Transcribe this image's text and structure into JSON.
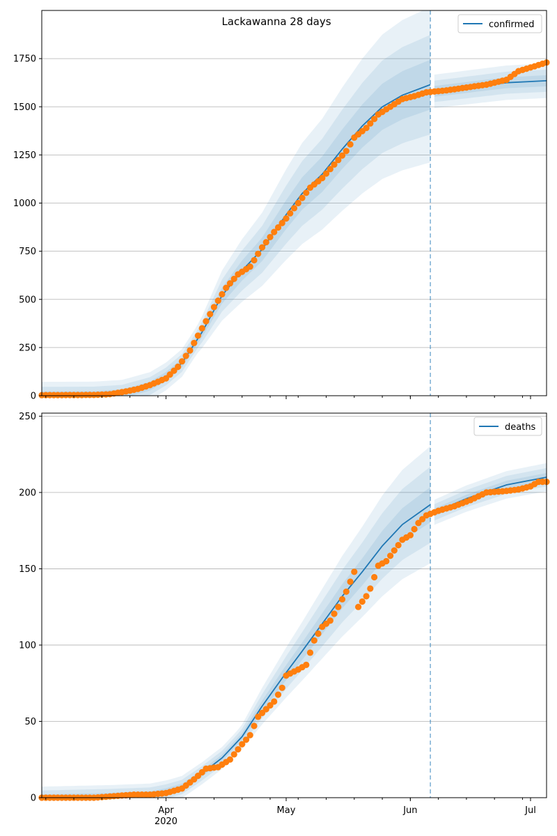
{
  "chart_data": [
    {
      "type": "line",
      "title": "Lackawanna 28 days",
      "xlabel": "",
      "ylabel": "",
      "xlim": [
        "2020-03-01",
        "2020-07-05"
      ],
      "ylim": [
        0,
        2000
      ],
      "yticks": [
        0,
        250,
        500,
        750,
        1000,
        1250,
        1500,
        1750
      ],
      "xticks": [
        {
          "date": "2020-04-01",
          "label": "Apr",
          "sublabel": "2020"
        },
        {
          "date": "2020-05-01",
          "label": "May",
          "sublabel": ""
        },
        {
          "date": "2020-06-01",
          "label": "Jun",
          "sublabel": ""
        },
        {
          "date": "2020-07-01",
          "label": "Jul",
          "sublabel": ""
        }
      ],
      "grid": "horizontal",
      "legend": {
        "position": "top-right",
        "entries": [
          "confirmed"
        ]
      },
      "forecast_start": "2020-06-06",
      "colors": {
        "model": "#1f77b4",
        "observed": "#ff7f0e",
        "band": "#1f77b4"
      },
      "series": [
        {
          "name": "confirmed",
          "kind": "model-line",
          "points": [
            [
              "2020-03-01",
              0
            ],
            [
              "2020-03-14",
              1
            ],
            [
              "2020-03-21",
              10
            ],
            [
              "2020-03-28",
              50
            ],
            [
              "2020-04-01",
              100
            ],
            [
              "2020-04-05",
              170
            ],
            [
              "2020-04-10",
              330
            ],
            [
              "2020-04-15",
              520
            ],
            [
              "2020-04-20",
              650
            ],
            [
              "2020-04-25",
              760
            ],
            [
              "2020-05-01",
              940
            ],
            [
              "2020-05-05",
              1050
            ],
            [
              "2020-05-10",
              1150
            ],
            [
              "2020-05-15",
              1280
            ],
            [
              "2020-05-20",
              1400
            ],
            [
              "2020-05-25",
              1500
            ],
            [
              "2020-05-30",
              1560
            ],
            [
              "2020-06-06",
              1615
            ],
            [
              "2020-06-07",
              1580
            ],
            [
              "2020-06-15",
              1600
            ],
            [
              "2020-06-25",
              1625
            ],
            [
              "2020-07-05",
              1635
            ]
          ]
        },
        {
          "kind": "observed-points",
          "points": [
            [
              "2020-03-01",
              3
            ],
            [
              "2020-03-14",
              4
            ],
            [
              "2020-03-18",
              8
            ],
            [
              "2020-03-22",
              22
            ],
            [
              "2020-03-25",
              35
            ],
            [
              "2020-03-28",
              55
            ],
            [
              "2020-04-01",
              90
            ],
            [
              "2020-04-04",
              150
            ],
            [
              "2020-04-07",
              235
            ],
            [
              "2020-04-10",
              350
            ],
            [
              "2020-04-13",
              460
            ],
            [
              "2020-04-16",
              560
            ],
            [
              "2020-04-19",
              630
            ],
            [
              "2020-04-22",
              670
            ],
            [
              "2020-04-25",
              770
            ],
            [
              "2020-04-28",
              850
            ],
            [
              "2020-05-01",
              920
            ],
            [
              "2020-05-04",
              1000
            ],
            [
              "2020-05-07",
              1080
            ],
            [
              "2020-05-10",
              1130
            ],
            [
              "2020-05-13",
              1200
            ],
            [
              "2020-05-16",
              1270
            ],
            [
              "2020-05-18",
              1340
            ],
            [
              "2020-05-21",
              1390
            ],
            [
              "2020-05-24",
              1460
            ],
            [
              "2020-05-27",
              1500
            ],
            [
              "2020-05-30",
              1540
            ],
            [
              "2020-06-02",
              1555
            ],
            [
              "2020-06-05",
              1575
            ],
            [
              "2020-06-10",
              1585
            ],
            [
              "2020-06-15",
              1600
            ],
            [
              "2020-06-20",
              1615
            ],
            [
              "2020-06-25",
              1640
            ],
            [
              "2020-06-28",
              1685
            ],
            [
              "2020-07-02",
              1710
            ],
            [
              "2020-07-05",
              1730
            ]
          ]
        }
      ],
      "band_half_widths_fraction": [
        0.08,
        0.16,
        0.25
      ]
    },
    {
      "type": "line",
      "title": "",
      "xlabel": "",
      "ylabel": "",
      "xlim": [
        "2020-03-01",
        "2020-07-05"
      ],
      "ylim": [
        0,
        252
      ],
      "yticks": [
        0,
        50,
        100,
        150,
        200,
        250
      ],
      "xticks": [
        {
          "date": "2020-04-01",
          "label": "Apr",
          "sublabel": "2020"
        },
        {
          "date": "2020-05-01",
          "label": "May",
          "sublabel": ""
        },
        {
          "date": "2020-06-01",
          "label": "Jun",
          "sublabel": ""
        },
        {
          "date": "2020-07-01",
          "label": "Jul",
          "sublabel": ""
        }
      ],
      "grid": "horizontal",
      "legend": {
        "position": "top-right",
        "entries": [
          "deaths"
        ]
      },
      "forecast_start": "2020-06-06",
      "colors": {
        "model": "#1f77b4",
        "observed": "#ff7f0e",
        "band": "#1f77b4"
      },
      "series": [
        {
          "name": "deaths",
          "kind": "model-line",
          "points": [
            [
              "2020-03-01",
              0
            ],
            [
              "2020-03-18",
              1
            ],
            [
              "2020-03-28",
              2
            ],
            [
              "2020-04-01",
              4
            ],
            [
              "2020-04-05",
              7
            ],
            [
              "2020-04-10",
              16
            ],
            [
              "2020-04-15",
              26
            ],
            [
              "2020-04-20",
              40
            ],
            [
              "2020-04-25",
              60
            ],
            [
              "2020-05-01",
              82
            ],
            [
              "2020-05-05",
              96
            ],
            [
              "2020-05-10",
              114
            ],
            [
              "2020-05-15",
              132
            ],
            [
              "2020-05-20",
              148
            ],
            [
              "2020-05-25",
              165
            ],
            [
              "2020-05-30",
              179
            ],
            [
              "2020-06-06",
              192
            ],
            [
              "2020-06-07",
              187
            ],
            [
              "2020-06-15",
              196
            ],
            [
              "2020-06-25",
              205
            ],
            [
              "2020-07-05",
              210
            ]
          ]
        },
        {
          "kind": "observed-points",
          "points": [
            [
              "2020-03-01",
              0
            ],
            [
              "2020-03-14",
              0
            ],
            [
              "2020-03-24",
              2
            ],
            [
              "2020-03-28",
              2
            ],
            [
              "2020-04-01",
              3
            ],
            [
              "2020-04-05",
              6
            ],
            [
              "2020-04-08",
              12
            ],
            [
              "2020-04-11",
              19
            ],
            [
              "2020-04-14",
              20
            ],
            [
              "2020-04-17",
              25
            ],
            [
              "2020-04-20",
              35
            ],
            [
              "2020-04-22",
              41
            ],
            [
              "2020-04-24",
              53
            ],
            [
              "2020-04-26",
              58
            ],
            [
              "2020-04-28",
              63
            ],
            [
              "2020-04-30",
              72
            ],
            [
              "2020-05-01",
              80
            ],
            [
              "2020-05-04",
              84
            ],
            [
              "2020-05-06",
              87
            ],
            [
              "2020-05-08",
              103
            ],
            [
              "2020-05-10",
              112
            ],
            [
              "2020-05-12",
              116
            ],
            [
              "2020-05-14",
              125
            ],
            [
              "2020-05-16",
              135
            ],
            [
              "2020-05-18",
              148
            ],
            [
              "2020-05-19",
              125
            ],
            [
              "2020-05-21",
              132
            ],
            [
              "2020-05-22",
              137
            ],
            [
              "2020-05-24",
              152
            ],
            [
              "2020-05-26",
              155
            ],
            [
              "2020-05-28",
              162
            ],
            [
              "2020-05-30",
              169
            ],
            [
              "2020-06-01",
              172
            ],
            [
              "2020-06-03",
              180
            ],
            [
              "2020-06-05",
              185
            ],
            [
              "2020-06-08",
              188
            ],
            [
              "2020-06-12",
              191
            ],
            [
              "2020-06-16",
              195
            ],
            [
              "2020-06-20",
              200
            ],
            [
              "2020-06-25",
              201
            ],
            [
              "2020-06-28",
              202
            ],
            [
              "2020-07-01",
              204
            ],
            [
              "2020-07-03",
              207
            ],
            [
              "2020-07-05",
              207
            ]
          ]
        }
      ],
      "band_half_widths_fraction": [
        0.06,
        0.13,
        0.2
      ]
    }
  ]
}
